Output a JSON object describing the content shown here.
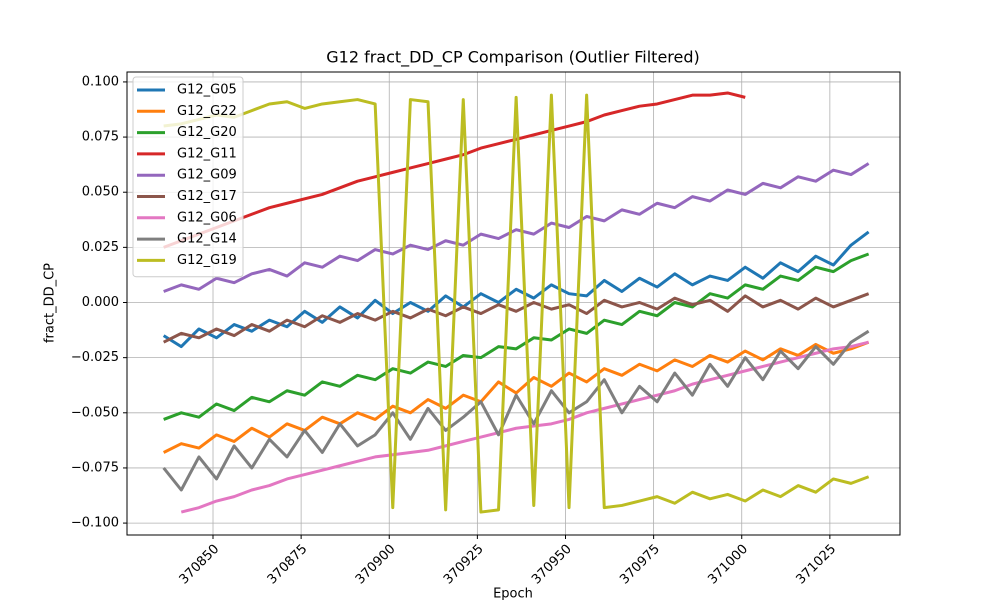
{
  "chart_data": {
    "type": "line",
    "title": "G12 fract_DD_CP Comparison (Outlier Filtered)",
    "x_label": "Epoch",
    "y_label": "fract_DD_CP",
    "x": [
      370836,
      370841,
      370846,
      370851,
      370856,
      370861,
      370866,
      370871,
      370876,
      370881,
      370886,
      370891,
      370896,
      370901,
      370906,
      370911,
      370916,
      370921,
      370926,
      370931,
      370936,
      370941,
      370946,
      370951,
      370956,
      370961,
      370966,
      370971,
      370976,
      370981,
      370986,
      370991,
      370996,
      371001,
      371006,
      371011,
      371016,
      371021,
      371026,
      371031,
      371036
    ],
    "xlim": [
      370825.6,
      371044.9
    ],
    "xticks": [
      370850,
      370875,
      370900,
      370925,
      370950,
      370975,
      371000,
      371025
    ],
    "ylim": [
      -0.1054,
      0.1045
    ],
    "yticks": [
      {
        "value": -0.1,
        "label": "−0.100"
      },
      {
        "value": -0.075,
        "label": "−0.075"
      },
      {
        "value": -0.05,
        "label": "−0.050"
      },
      {
        "value": -0.025,
        "label": "−0.025"
      },
      {
        "value": 0,
        "label": "0.000"
      },
      {
        "value": 0.025,
        "label": "0.025"
      },
      {
        "value": 0.05,
        "label": "0.050"
      },
      {
        "value": 0.075,
        "label": "0.075"
      },
      {
        "value": 0.1,
        "label": "0.100"
      }
    ],
    "grid": true,
    "legend": "upper-left",
    "series": [
      {
        "name": "G12_G05",
        "color": "#1f77b4",
        "values": [
          -0.015,
          -0.02,
          -0.012,
          -0.016,
          -0.01,
          -0.013,
          -0.008,
          -0.011,
          -0.004,
          -0.009,
          -0.002,
          -0.007,
          0.001,
          -0.005,
          0.0,
          -0.004,
          0.003,
          -0.002,
          0.004,
          0.0,
          0.006,
          0.002,
          0.008,
          0.004,
          0.003,
          0.01,
          0.005,
          0.011,
          0.007,
          0.013,
          0.008,
          0.012,
          0.01,
          0.016,
          0.011,
          0.018,
          0.014,
          0.021,
          0.017,
          0.026,
          0.032
        ]
      },
      {
        "name": "G12_G22",
        "color": "#ff7f0e",
        "values": [
          -0.068,
          -0.064,
          -0.066,
          -0.06,
          -0.063,
          -0.057,
          -0.061,
          -0.055,
          -0.058,
          -0.052,
          -0.055,
          -0.05,
          -0.053,
          -0.047,
          -0.05,
          -0.044,
          -0.048,
          -0.042,
          -0.045,
          -0.036,
          -0.041,
          -0.034,
          -0.038,
          -0.032,
          -0.036,
          -0.03,
          -0.033,
          -0.028,
          -0.031,
          -0.026,
          -0.029,
          -0.024,
          -0.027,
          -0.022,
          -0.026,
          -0.021,
          -0.024,
          -0.019,
          -0.023,
          -0.021,
          -0.018
        ]
      },
      {
        "name": "G12_G20",
        "color": "#2ca02c",
        "values": [
          -0.053,
          -0.05,
          -0.052,
          -0.046,
          -0.049,
          -0.043,
          -0.045,
          -0.04,
          -0.042,
          -0.036,
          -0.038,
          -0.033,
          -0.035,
          -0.03,
          -0.032,
          -0.027,
          -0.029,
          -0.024,
          -0.025,
          -0.02,
          -0.021,
          -0.016,
          -0.017,
          -0.012,
          -0.014,
          -0.008,
          -0.01,
          -0.004,
          -0.006,
          0.0,
          -0.002,
          0.004,
          0.002,
          0.008,
          0.006,
          0.012,
          0.01,
          0.016,
          0.014,
          0.019,
          0.022
        ]
      },
      {
        "name": "G12_G11",
        "color": "#d62728",
        "values": [
          0.025,
          0.028,
          0.031,
          0.034,
          0.037,
          0.04,
          0.043,
          0.045,
          0.047,
          0.049,
          0.052,
          0.055,
          0.057,
          0.059,
          0.061,
          0.063,
          0.065,
          0.067,
          0.07,
          0.072,
          0.074,
          0.076,
          0.078,
          0.08,
          0.082,
          0.085,
          0.087,
          0.089,
          0.09,
          0.092,
          0.094,
          0.094,
          0.095,
          0.093,
          null,
          null,
          null,
          null,
          null,
          null,
          null
        ]
      },
      {
        "name": "G12_G09",
        "color": "#9467bd",
        "values": [
          0.005,
          0.008,
          0.006,
          0.011,
          0.009,
          0.013,
          0.015,
          0.012,
          0.018,
          0.016,
          0.021,
          0.019,
          0.024,
          0.022,
          0.026,
          0.024,
          0.028,
          0.026,
          0.031,
          0.029,
          0.033,
          0.031,
          0.036,
          0.034,
          0.039,
          0.037,
          0.042,
          0.04,
          0.045,
          0.043,
          0.048,
          0.046,
          0.051,
          0.049,
          0.054,
          0.052,
          0.057,
          0.055,
          0.06,
          0.058,
          0.063
        ]
      },
      {
        "name": "G12_G17",
        "color": "#8c564b",
        "values": [
          -0.018,
          -0.014,
          -0.016,
          -0.012,
          -0.015,
          -0.01,
          -0.013,
          -0.008,
          -0.011,
          -0.006,
          -0.009,
          -0.005,
          -0.008,
          -0.004,
          -0.007,
          -0.003,
          -0.006,
          -0.002,
          -0.005,
          -0.001,
          -0.004,
          0.0,
          -0.003,
          -0.001,
          -0.005,
          0.001,
          -0.002,
          0.0,
          -0.003,
          0.002,
          -0.001,
          0.001,
          -0.004,
          0.003,
          -0.002,
          0.001,
          -0.003,
          0.002,
          -0.002,
          0.001,
          0.004
        ]
      },
      {
        "name": "G12_G06",
        "color": "#e377c2",
        "values": [
          null,
          -0.095,
          -0.093,
          -0.09,
          -0.088,
          -0.085,
          -0.083,
          -0.08,
          -0.078,
          -0.076,
          -0.074,
          -0.072,
          -0.07,
          -0.069,
          -0.068,
          -0.067,
          -0.065,
          -0.063,
          -0.061,
          -0.059,
          -0.057,
          -0.056,
          -0.055,
          -0.053,
          -0.05,
          -0.048,
          -0.046,
          -0.044,
          -0.042,
          -0.04,
          -0.037,
          -0.035,
          -0.033,
          -0.031,
          -0.029,
          -0.027,
          -0.025,
          -0.023,
          -0.021,
          -0.02,
          -0.018
        ]
      },
      {
        "name": "G12_G14",
        "color": "#7f7f7f",
        "values": [
          -0.075,
          -0.085,
          -0.07,
          -0.08,
          -0.065,
          -0.075,
          -0.062,
          -0.07,
          -0.058,
          -0.068,
          -0.055,
          -0.065,
          -0.06,
          -0.05,
          -0.062,
          -0.048,
          -0.058,
          -0.052,
          -0.045,
          -0.06,
          -0.042,
          -0.055,
          -0.04,
          -0.05,
          -0.045,
          -0.035,
          -0.05,
          -0.038,
          -0.045,
          -0.032,
          -0.042,
          -0.028,
          -0.038,
          -0.025,
          -0.035,
          -0.022,
          -0.03,
          -0.02,
          -0.028,
          -0.018,
          -0.013
        ]
      },
      {
        "name": "G12_G19",
        "color": "#bcbd22",
        "values": [
          0.08,
          0.081,
          0.083,
          0.085,
          0.084,
          0.087,
          0.09,
          0.091,
          0.088,
          0.09,
          0.091,
          0.092,
          0.09,
          -0.093,
          0.092,
          0.091,
          -0.094,
          0.092,
          -0.095,
          -0.094,
          0.093,
          -0.092,
          0.094,
          -0.093,
          0.094,
          -0.093,
          -0.092,
          -0.09,
          -0.088,
          -0.091,
          -0.086,
          -0.089,
          -0.087,
          -0.09,
          -0.085,
          -0.088,
          -0.083,
          -0.086,
          -0.08,
          -0.082,
          -0.079
        ]
      }
    ]
  }
}
